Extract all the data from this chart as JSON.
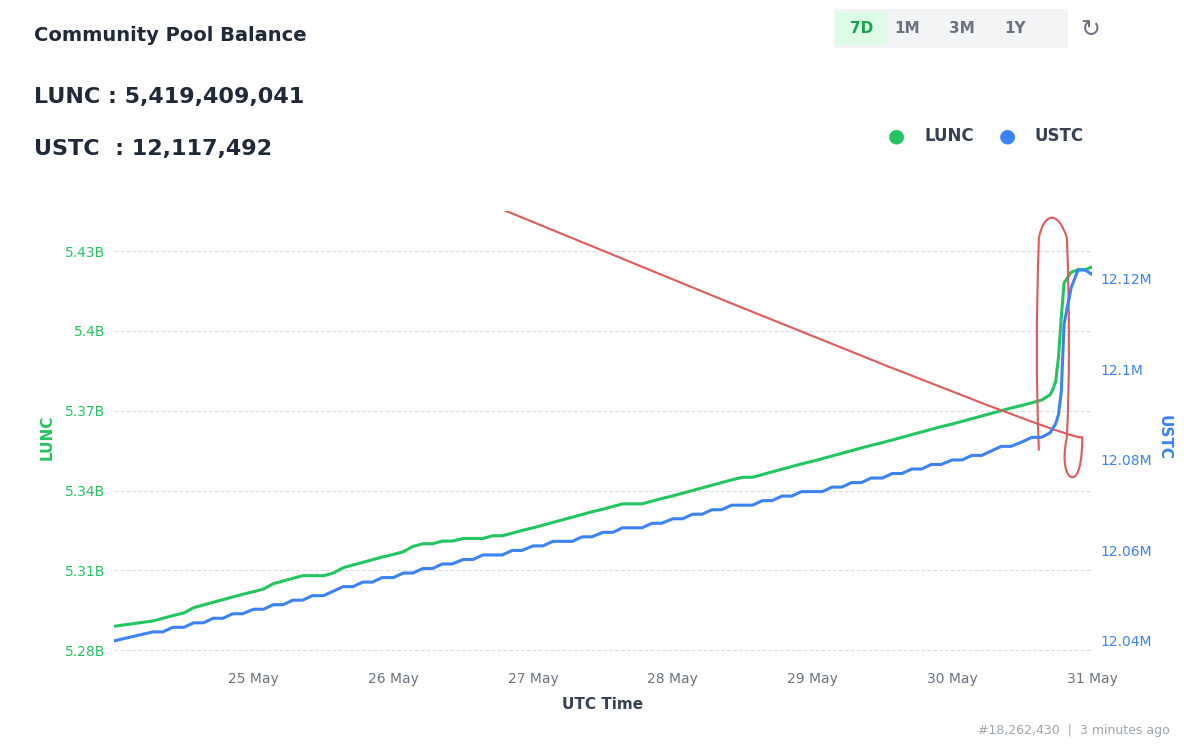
{
  "title": "Community Pool Balance",
  "lunc_value": "LUNC : 5,419,409,041",
  "ustc_value": "USTC  : 12,117,492",
  "xlabel": "UTC Time",
  "ylabel_left": "LUNC",
  "ylabel_right": "USTC",
  "background_color": "#ffffff",
  "chart_bg_color": "#ffffff",
  "lunc_color": "#22c55e",
  "ustc_color": "#3b82f6",
  "lunc_yticks": [
    5.28,
    5.31,
    5.34,
    5.37,
    5.4,
    5.43
  ],
  "lunc_ytick_labels": [
    "5.28B",
    "5.31B",
    "5.34B",
    "5.37B",
    "5.4B",
    "5.43B"
  ],
  "ustc_yticks": [
    12.04,
    12.06,
    12.08,
    12.1,
    12.12
  ],
  "ustc_ytick_labels": [
    "12.04M",
    "12.06M",
    "12.08M",
    "12.1M",
    "12.12M"
  ],
  "xtick_labels": [
    "25 May",
    "26 May",
    "27 May",
    "28 May",
    "29 May",
    "30 May",
    "31 May"
  ],
  "footer_text": "#18,262,430  |  3 minutes ago",
  "time_buttons": [
    "7D",
    "1M",
    "3M",
    "1Y"
  ],
  "active_button": "7D",
  "lunc_ylim": [
    5.275,
    5.445
  ],
  "ustc_ylim": [
    12.035,
    12.135
  ],
  "grid_color": "#d1d5db",
  "tick_color_lunc": "#22c55e",
  "tick_color_ustc": "#3b82f6",
  "lunc_data_x": [
    0.0,
    0.14,
    0.28,
    0.35,
    0.42,
    0.5,
    0.57,
    0.64,
    0.71,
    0.78,
    0.85,
    0.92,
    1.0,
    1.07,
    1.14,
    1.21,
    1.28,
    1.35,
    1.42,
    1.5,
    1.57,
    1.64,
    1.71,
    1.78,
    1.85,
    1.92,
    2.0,
    2.07,
    2.14,
    2.21,
    2.28,
    2.35,
    2.42,
    2.5,
    2.57,
    2.64,
    2.71,
    2.78,
    2.85,
    2.92,
    3.0,
    3.07,
    3.14,
    3.21,
    3.28,
    3.35,
    3.42,
    3.5,
    3.57,
    3.64,
    3.71,
    3.78,
    3.85,
    3.92,
    4.0,
    4.07,
    4.14,
    4.21,
    4.28,
    4.35,
    4.42,
    4.5,
    4.57,
    4.64,
    4.71,
    4.78,
    4.85,
    4.92,
    5.0,
    5.07,
    5.14,
    5.21,
    5.28,
    5.35,
    5.42,
    5.5,
    5.57,
    5.64,
    5.71,
    5.78,
    5.85,
    5.92,
    6.0,
    6.07,
    6.14,
    6.21,
    6.28,
    6.35,
    6.42,
    6.5,
    6.57,
    6.64,
    6.7,
    6.72,
    6.74,
    6.76,
    6.78,
    6.8,
    6.85,
    6.9,
    6.95,
    7.0
  ],
  "lunc_data_y": [
    5.289,
    5.29,
    5.291,
    5.292,
    5.293,
    5.294,
    5.296,
    5.297,
    5.298,
    5.299,
    5.3,
    5.301,
    5.302,
    5.303,
    5.305,
    5.306,
    5.307,
    5.308,
    5.308,
    5.308,
    5.309,
    5.311,
    5.312,
    5.313,
    5.314,
    5.315,
    5.316,
    5.317,
    5.319,
    5.32,
    5.32,
    5.321,
    5.321,
    5.322,
    5.322,
    5.322,
    5.323,
    5.323,
    5.324,
    5.325,
    5.326,
    5.327,
    5.328,
    5.329,
    5.33,
    5.331,
    5.332,
    5.333,
    5.334,
    5.335,
    5.335,
    5.335,
    5.336,
    5.337,
    5.338,
    5.339,
    5.34,
    5.341,
    5.342,
    5.343,
    5.344,
    5.345,
    5.345,
    5.346,
    5.347,
    5.348,
    5.349,
    5.35,
    5.351,
    5.352,
    5.353,
    5.354,
    5.355,
    5.356,
    5.357,
    5.358,
    5.359,
    5.36,
    5.361,
    5.362,
    5.363,
    5.364,
    5.365,
    5.366,
    5.367,
    5.368,
    5.369,
    5.37,
    5.371,
    5.372,
    5.373,
    5.374,
    5.376,
    5.378,
    5.381,
    5.39,
    5.405,
    5.418,
    5.422,
    5.423,
    5.423,
    5.424
  ],
  "ustc_data_x": [
    0.0,
    0.14,
    0.28,
    0.35,
    0.42,
    0.5,
    0.57,
    0.64,
    0.71,
    0.78,
    0.85,
    0.92,
    1.0,
    1.07,
    1.14,
    1.21,
    1.28,
    1.35,
    1.42,
    1.5,
    1.57,
    1.64,
    1.71,
    1.78,
    1.85,
    1.92,
    2.0,
    2.07,
    2.14,
    2.21,
    2.28,
    2.35,
    2.42,
    2.5,
    2.57,
    2.64,
    2.71,
    2.78,
    2.85,
    2.92,
    3.0,
    3.07,
    3.14,
    3.21,
    3.28,
    3.35,
    3.42,
    3.5,
    3.57,
    3.64,
    3.71,
    3.78,
    3.85,
    3.92,
    4.0,
    4.07,
    4.14,
    4.21,
    4.28,
    4.35,
    4.42,
    4.5,
    4.57,
    4.64,
    4.71,
    4.78,
    4.85,
    4.92,
    5.0,
    5.07,
    5.14,
    5.21,
    5.28,
    5.35,
    5.42,
    5.5,
    5.57,
    5.64,
    5.71,
    5.78,
    5.85,
    5.92,
    6.0,
    6.07,
    6.14,
    6.21,
    6.28,
    6.35,
    6.42,
    6.5,
    6.57,
    6.64,
    6.7,
    6.72,
    6.74,
    6.76,
    6.78,
    6.8,
    6.85,
    6.9,
    6.95,
    7.0
  ],
  "ustc_data_y": [
    12.04,
    12.041,
    12.042,
    12.042,
    12.043,
    12.043,
    12.044,
    12.044,
    12.045,
    12.045,
    12.046,
    12.046,
    12.047,
    12.047,
    12.048,
    12.048,
    12.049,
    12.049,
    12.05,
    12.05,
    12.051,
    12.052,
    12.052,
    12.053,
    12.053,
    12.054,
    12.054,
    12.055,
    12.055,
    12.056,
    12.056,
    12.057,
    12.057,
    12.058,
    12.058,
    12.059,
    12.059,
    12.059,
    12.06,
    12.06,
    12.061,
    12.061,
    12.062,
    12.062,
    12.062,
    12.063,
    12.063,
    12.064,
    12.064,
    12.065,
    12.065,
    12.065,
    12.066,
    12.066,
    12.067,
    12.067,
    12.068,
    12.068,
    12.069,
    12.069,
    12.07,
    12.07,
    12.07,
    12.071,
    12.071,
    12.072,
    12.072,
    12.073,
    12.073,
    12.073,
    12.074,
    12.074,
    12.075,
    12.075,
    12.076,
    12.076,
    12.077,
    12.077,
    12.078,
    12.078,
    12.079,
    12.079,
    12.08,
    12.08,
    12.081,
    12.081,
    12.082,
    12.083,
    12.083,
    12.084,
    12.085,
    12.085,
    12.086,
    12.087,
    12.088,
    12.09,
    12.095,
    12.11,
    12.118,
    12.122,
    12.122,
    12.121
  ]
}
